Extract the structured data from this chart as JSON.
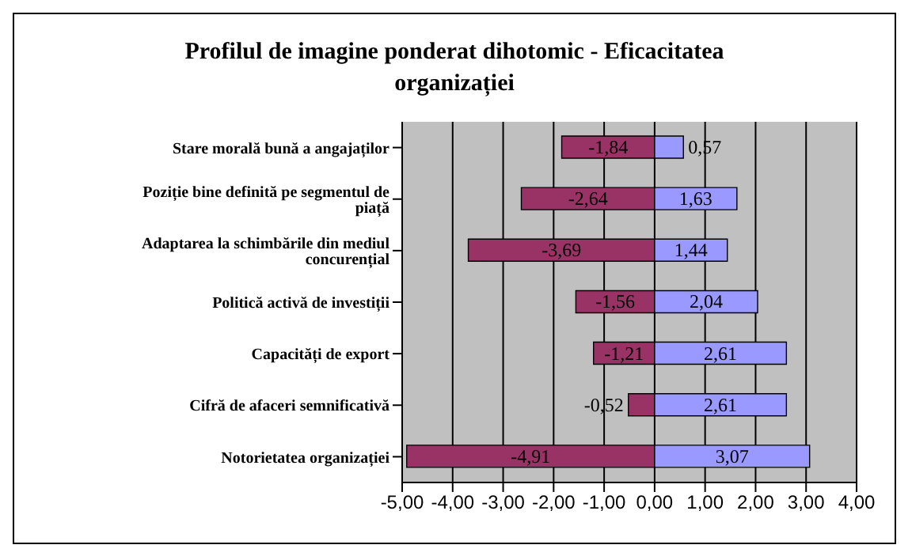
{
  "chart_data": {
    "type": "bar",
    "title": "Profilul de imagine ponderat dihotomic - Eficacitatea organizației",
    "orientation": "horizontal",
    "stacked": true,
    "grid": "x",
    "categories": [
      "Stare morală bună a angajaților",
      "Poziție bine definită pe segmentul de piață",
      "Adaptarea la schimbările din mediul concurențial",
      "Politică activă de investiții",
      "Capacități de export",
      "Cifră de afaceri semnificativă",
      "Notorietatea organizației"
    ],
    "series": [
      {
        "color": "#993366",
        "values": [
          -1.84,
          -2.64,
          -3.69,
          -1.56,
          -1.21,
          -0.52,
          -4.91
        ],
        "value_labels": [
          "-1,84",
          "-2,64",
          "-3,69",
          "-1,56",
          "-1,21",
          "-0,52",
          "-4,91"
        ]
      },
      {
        "color": "#9999ff",
        "values": [
          0.57,
          1.63,
          1.44,
          2.04,
          2.61,
          2.61,
          3.07
        ],
        "value_labels": [
          "0,57",
          "1,63",
          "1,44",
          "2,04",
          "2,61",
          "2,61",
          "3,07"
        ]
      }
    ],
    "xlim": [
      -5,
      4
    ],
    "xticks": [
      {
        "value": -5,
        "label": "-5,00"
      },
      {
        "value": -4,
        "label": "-4,00"
      },
      {
        "value": -3,
        "label": "-3,00"
      },
      {
        "value": -2,
        "label": "-2,00"
      },
      {
        "value": -1,
        "label": "-1,00"
      },
      {
        "value": 0,
        "label": "0,00"
      },
      {
        "value": 1,
        "label": "1,00"
      },
      {
        "value": 2,
        "label": "2,00"
      },
      {
        "value": 3,
        "label": "3,00"
      },
      {
        "value": 4,
        "label": "4,00"
      }
    ]
  }
}
